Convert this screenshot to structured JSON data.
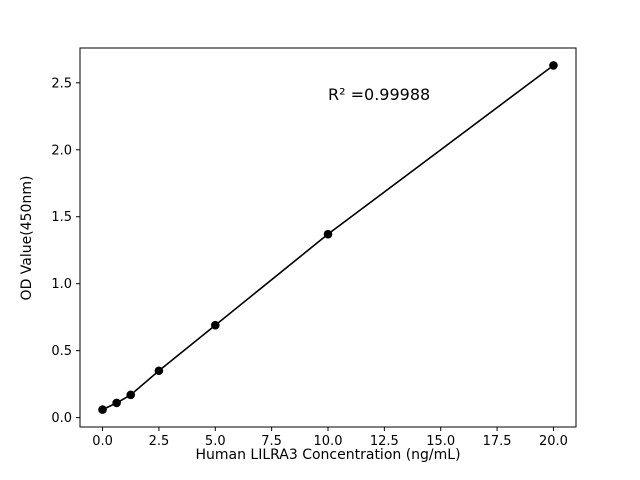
{
  "chart_data": {
    "type": "scatter",
    "title": "",
    "xlabel": "Human LILRA3 Concentration (ng/mL)",
    "ylabel": "OD Value(450nm)",
    "annotation": "R² =0.99988",
    "annotation_xy": [
      10,
      2.37
    ],
    "x": [
      0,
      0.625,
      1.25,
      2.5,
      5,
      10,
      20
    ],
    "y": [
      0.06,
      0.11,
      0.17,
      0.35,
      0.69,
      1.37,
      2.63
    ],
    "line": true,
    "line_color": "#000000",
    "marker_color": "#000000",
    "xlim": [
      -1,
      21
    ],
    "ylim": [
      -0.07,
      2.76
    ],
    "xticks": [
      0,
      2.5,
      5,
      7.5,
      10,
      12.5,
      15,
      17.5,
      20
    ],
    "xtick_labels": [
      "0.0",
      "2.5",
      "5.0",
      "7.5",
      "10.0",
      "12.5",
      "15.0",
      "17.5",
      "20.0"
    ],
    "yticks": [
      0,
      0.5,
      1.0,
      1.5,
      2.0,
      2.5
    ],
    "ytick_labels": [
      "0.0",
      "0.5",
      "1.0",
      "1.5",
      "2.0",
      "2.5"
    ],
    "grid": false,
    "legend": null
  }
}
